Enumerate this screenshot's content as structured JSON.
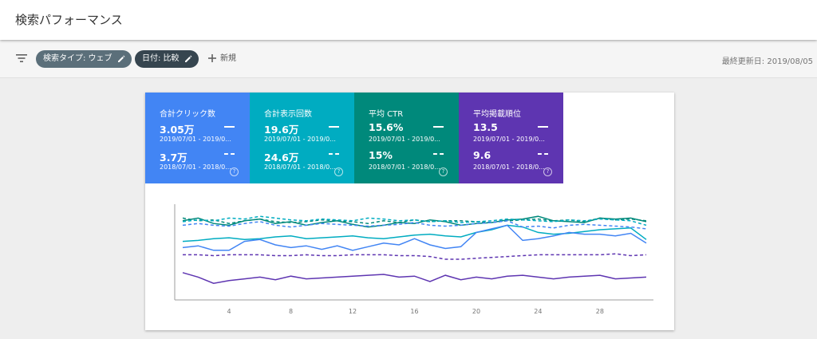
{
  "header": {
    "title": "検索パフォーマンス"
  },
  "filters": {
    "type_chip": "検索タイプ: ウェブ",
    "date_chip": "日付: 比較",
    "new_label": "新規",
    "last_updated": "最終更新日: 2019/08/05"
  },
  "metrics": [
    {
      "label": "合計クリック数",
      "current": "3.05万",
      "current_range": "2019/07/01 - 2019/0...",
      "previous": "3.7万",
      "previous_range": "2018/07/01 - 2018/0...",
      "color": "#4285f4"
    },
    {
      "label": "合計表示回数",
      "current": "19.6万",
      "current_range": "2019/07/01 - 2019/0...",
      "previous": "24.6万",
      "previous_range": "2018/07/01 - 2018/0...",
      "color": "#00acc1"
    },
    {
      "label": "平均 CTR",
      "current": "15.6%",
      "current_range": "2019/07/01 - 2019/0...",
      "previous": "15%",
      "previous_range": "2018/07/01 - 2018/0...",
      "color": "#00897b"
    },
    {
      "label": "平均掲載順位",
      "current": "13.5",
      "current_range": "2019/07/01 - 2019/0...",
      "previous": "9.6",
      "previous_range": "2018/07/01 - 2018/0...",
      "color": "#5e35b1"
    }
  ],
  "chart_data": {
    "type": "line",
    "x_ticks": [
      "4",
      "8",
      "12",
      "16",
      "20",
      "24",
      "28"
    ],
    "x_range": [
      1,
      31
    ],
    "y_range": [
      0,
      100
    ],
    "series": [
      {
        "color": "#00897b",
        "dashed": false,
        "values": [
          85,
          88,
          82,
          80,
          85,
          87,
          82,
          84,
          80,
          83,
          85,
          81,
          78,
          80,
          83,
          82,
          86,
          84,
          80,
          82,
          83,
          86,
          87,
          90,
          85,
          84,
          83,
          88,
          87,
          88,
          84
        ]
      },
      {
        "color": "#00897b",
        "dashed": true,
        "values": [
          88,
          85,
          86,
          82,
          85,
          87,
          84,
          83,
          84,
          86,
          85,
          84,
          82,
          85,
          83,
          86,
          84,
          85,
          85,
          84,
          83,
          85,
          86,
          87,
          85,
          86,
          84,
          88,
          86,
          87,
          85
        ]
      },
      {
        "color": "#00acc1",
        "dashed": false,
        "values": [
          62,
          63,
          65,
          66,
          64,
          65,
          67,
          68,
          65,
          66,
          67,
          68,
          66,
          65,
          67,
          69,
          70,
          68,
          67,
          72,
          75,
          80,
          78,
          72,
          70,
          71,
          73,
          75,
          76,
          77,
          64
        ]
      },
      {
        "color": "#00acc1",
        "dashed": true,
        "values": [
          84,
          86,
          85,
          88,
          87,
          90,
          88,
          86,
          85,
          87,
          86,
          85,
          88,
          87,
          85,
          86,
          84,
          85,
          83,
          84,
          85,
          87,
          86,
          85,
          84,
          86,
          85,
          87,
          86,
          85,
          80
        ]
      },
      {
        "color": "#4285f4",
        "dashed": false,
        "values": [
          55,
          57,
          52,
          52,
          62,
          64,
          58,
          55,
          57,
          53,
          57,
          52,
          56,
          60,
          58,
          65,
          58,
          54,
          56,
          72,
          76,
          80,
          63,
          65,
          68,
          72,
          70,
          70,
          68,
          71,
          60
        ]
      },
      {
        "color": "#4285f4",
        "dashed": true,
        "values": [
          80,
          82,
          80,
          79,
          82,
          84,
          80,
          78,
          80,
          82,
          81,
          80,
          79,
          80,
          81,
          83,
          80,
          79,
          80,
          82,
          83,
          85,
          78,
          79,
          77,
          80,
          81,
          80,
          79,
          78,
          76
        ]
      },
      {
        "color": "#5e35b1",
        "dashed": true,
        "values": [
          47,
          47,
          46,
          47,
          47,
          47,
          46,
          46,
          47,
          46,
          46,
          47,
          47,
          47,
          46,
          46,
          45,
          42,
          42,
          43,
          44,
          45,
          46,
          47,
          47,
          47,
          47,
          47,
          48,
          46,
          47
        ]
      },
      {
        "color": "#5e35b1",
        "dashed": false,
        "values": [
          27,
          22,
          15,
          18,
          20,
          22,
          19,
          23,
          20,
          21,
          22,
          23,
          24,
          25,
          22,
          23,
          17,
          24,
          19,
          22,
          20,
          23,
          24,
          22,
          20,
          22,
          23,
          24,
          20,
          21,
          22
        ]
      }
    ]
  }
}
